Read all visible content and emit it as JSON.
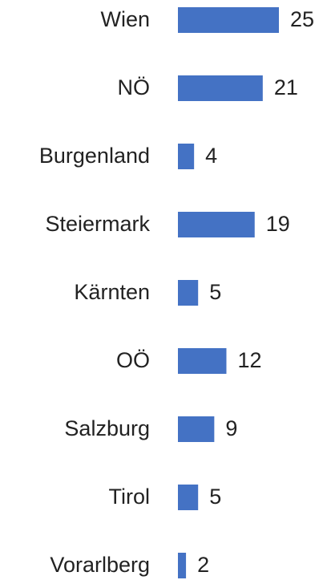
{
  "chart_data": {
    "type": "barh",
    "categories": [
      "Wien",
      "NÖ",
      "Burgenland",
      "Steiermark",
      "Kärnten",
      "OÖ",
      "Salzburg",
      "Tirol",
      "Vorarlberg"
    ],
    "values": [
      25,
      21,
      4,
      19,
      5,
      12,
      9,
      5,
      2
    ],
    "color": "#4472c4",
    "xlim": [
      0,
      25
    ]
  }
}
